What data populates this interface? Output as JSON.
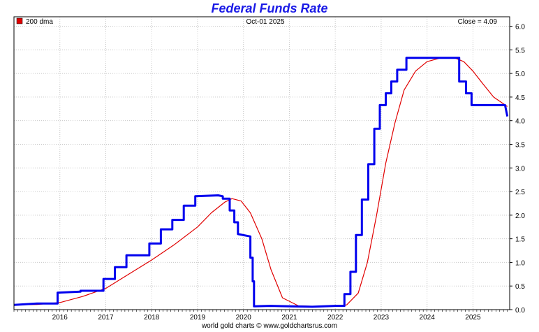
{
  "chart_data": {
    "type": "line",
    "title": "Federal Funds Rate",
    "date_label": "Oct-01  2025",
    "close_label": "Close = 4.09",
    "legend": [
      {
        "name": "200 dma",
        "color": "#e00000"
      }
    ],
    "footer": "world gold charts © www.goldchartsrus.com",
    "xlabel": "",
    "ylabel": "",
    "x_range": [
      2015.0,
      2025.8
    ],
    "ylim": [
      0,
      6.2
    ],
    "y_ticks": [
      "0.0",
      "0.5",
      "1.0",
      "1.5",
      "2.0",
      "2.5",
      "3.0",
      "3.5",
      "4.0",
      "4.5",
      "5.0",
      "5.5",
      "6.0"
    ],
    "x_ticks": [
      {
        "value": 2016.0,
        "label": "2016"
      },
      {
        "value": 2017.0,
        "label": "2017"
      },
      {
        "value": 2018.0,
        "label": "2018"
      },
      {
        "value": 2019.0,
        "label": "2019"
      },
      {
        "value": 2020.0,
        "label": "2020"
      },
      {
        "value": 2021.0,
        "label": "2021"
      },
      {
        "value": 2022.0,
        "label": "2022"
      },
      {
        "value": 2023.0,
        "label": "2023"
      },
      {
        "value": 2024.0,
        "label": "2024"
      },
      {
        "value": 2025.0,
        "label": "2025"
      }
    ],
    "grid": true,
    "series": [
      {
        "name": "Federal Funds Rate",
        "color": "#0000ee",
        "x": [
          2015.0,
          2015.5,
          2015.95,
          2015.95,
          2016.45,
          2016.45,
          2016.95,
          2016.95,
          2017.2,
          2017.2,
          2017.45,
          2017.45,
          2017.95,
          2017.95,
          2018.2,
          2018.2,
          2018.45,
          2018.45,
          2018.7,
          2018.7,
          2018.95,
          2018.95,
          2019.45,
          2019.55,
          2019.55,
          2019.7,
          2019.7,
          2019.8,
          2019.8,
          2019.88,
          2019.88,
          2020.15,
          2020.15,
          2020.2,
          2020.2,
          2020.23,
          2020.23,
          2020.6,
          2021.0,
          2021.5,
          2022.0,
          2022.2,
          2022.2,
          2022.33,
          2022.33,
          2022.45,
          2022.45,
          2022.58,
          2022.58,
          2022.72,
          2022.72,
          2022.85,
          2022.85,
          2022.97,
          2022.97,
          2023.1,
          2023.1,
          2023.22,
          2023.22,
          2023.35,
          2023.35,
          2023.55,
          2023.55,
          2024.7,
          2024.7,
          2024.85,
          2024.85,
          2024.97,
          2024.97,
          2025.7,
          2025.7,
          2025.75
        ],
        "values": [
          0.1,
          0.13,
          0.13,
          0.36,
          0.38,
          0.4,
          0.4,
          0.65,
          0.65,
          0.9,
          0.9,
          1.15,
          1.15,
          1.4,
          1.4,
          1.7,
          1.7,
          1.9,
          1.9,
          2.2,
          2.2,
          2.4,
          2.42,
          2.4,
          2.35,
          2.35,
          2.1,
          2.1,
          1.85,
          1.85,
          1.6,
          1.55,
          1.1,
          1.1,
          0.6,
          0.6,
          0.07,
          0.08,
          0.07,
          0.06,
          0.08,
          0.08,
          0.33,
          0.33,
          0.8,
          0.8,
          1.58,
          1.58,
          2.33,
          2.33,
          3.08,
          3.08,
          3.83,
          3.83,
          4.33,
          4.33,
          4.58,
          4.58,
          4.83,
          4.83,
          5.08,
          5.08,
          5.33,
          5.33,
          4.83,
          4.83,
          4.58,
          4.58,
          4.33,
          4.33,
          4.33,
          4.09
        ]
      },
      {
        "name": "200 dma",
        "color": "#e00000",
        "x": [
          2015.0,
          2015.5,
          2016.0,
          2016.5,
          2017.0,
          2017.5,
          2018.0,
          2018.5,
          2019.0,
          2019.3,
          2019.6,
          2019.75,
          2019.95,
          2020.15,
          2020.4,
          2020.6,
          2020.85,
          2021.2,
          2021.6,
          2022.0,
          2022.25,
          2022.5,
          2022.7,
          2022.9,
          2023.1,
          2023.3,
          2023.5,
          2023.75,
          2024.0,
          2024.3,
          2024.6,
          2024.8,
          2025.0,
          2025.2,
          2025.45,
          2025.75
        ],
        "values": [
          0.1,
          0.11,
          0.15,
          0.28,
          0.45,
          0.75,
          1.05,
          1.38,
          1.75,
          2.05,
          2.28,
          2.35,
          2.3,
          2.05,
          1.5,
          0.85,
          0.25,
          0.08,
          0.07,
          0.07,
          0.1,
          0.35,
          1.0,
          2.0,
          3.1,
          3.95,
          4.65,
          5.05,
          5.25,
          5.33,
          5.33,
          5.25,
          5.05,
          4.8,
          4.5,
          4.3
        ]
      }
    ]
  }
}
